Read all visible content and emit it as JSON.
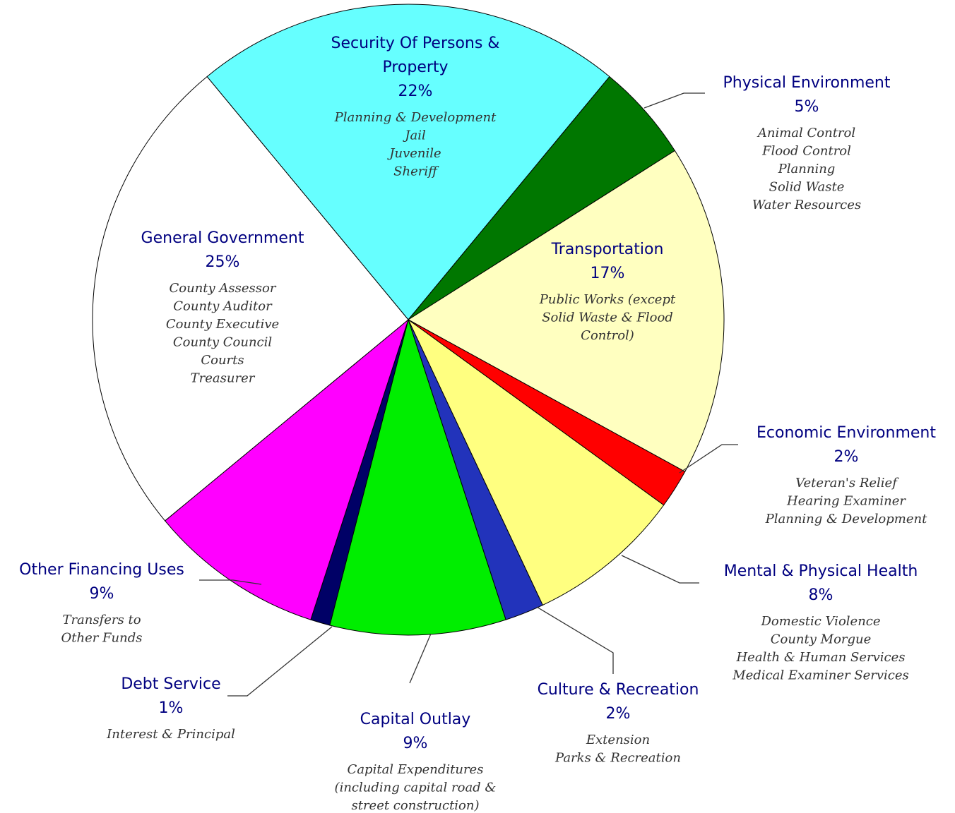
{
  "chart_data": {
    "type": "pie",
    "categories": [
      "Security Of Persons & Property",
      "Physical Environment",
      "Transportation",
      "Economic Environment",
      "Mental & Physical Health",
      "Culture & Recreation",
      "Capital Outlay",
      "Debt Service",
      "Other Financing Uses",
      "General Government"
    ],
    "values": [
      22,
      5,
      17,
      2,
      8,
      2,
      9,
      1,
      9,
      25
    ],
    "value_labels": [
      "22%",
      "5%",
      "17%",
      "2%",
      "8%",
      "2%",
      "9%",
      "1%",
      "9%",
      "25%"
    ],
    "colors": [
      "#66ffff",
      "#007700",
      "#ffffc0",
      "#ff0000",
      "#ffff80",
      "#2233bb",
      "#00ee00",
      "#000066",
      "#ff00ff",
      "#ffffff"
    ],
    "descriptions": [
      [
        "Planning & Development",
        "Jail",
        "Juvenile",
        "Sheriff"
      ],
      [
        "Animal Control",
        "Flood Control",
        "Planning",
        "Solid Waste",
        "Water Resources"
      ],
      [
        "Public Works (except",
        "Solid Waste & Flood",
        "Control)"
      ],
      [
        "Veteran's Relief",
        "Hearing Examiner",
        "Planning & Development"
      ],
      [
        "Domestic Violence",
        "County Morgue",
        "Health & Human Services",
        "Medical Examiner Services"
      ],
      [
        "Extension",
        "Parks & Recreation"
      ],
      [
        "Capital Expenditures",
        "(including capital road &",
        "street construction)"
      ],
      [
        "Interest & Principal"
      ],
      [
        "Transfers to",
        "Other Funds"
      ],
      [
        "County Assessor",
        "County Auditor",
        "County Executive",
        "County Council",
        "Courts",
        "Treasurer"
      ]
    ]
  }
}
